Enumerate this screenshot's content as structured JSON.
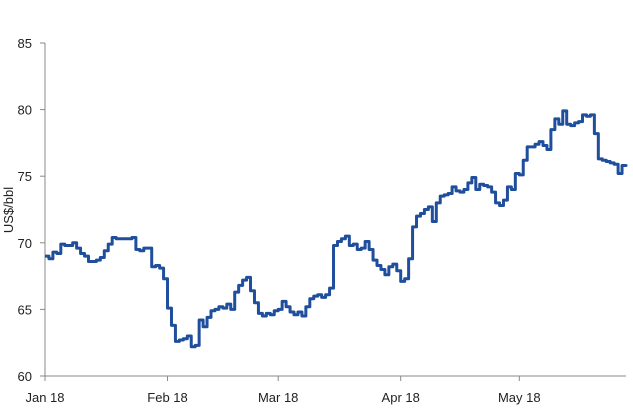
{
  "chart_data": {
    "type": "line",
    "title": "",
    "xlabel": "",
    "ylabel": "US$/bbl",
    "ylim": [
      60,
      85
    ],
    "yticks": [
      "60",
      "65",
      "70",
      "75",
      "80",
      "85"
    ],
    "xticks": [
      "Jan 18",
      "Feb 18",
      "Mar 18",
      "Apr 18",
      "May 18"
    ],
    "grid": false,
    "legend": "none",
    "line_color": "#1f4e9c",
    "series": [
      {
        "name": "",
        "x": [
          "2018-01-01",
          "2018-01-02",
          "2018-01-03",
          "2018-01-04",
          "2018-01-05",
          "2018-01-06",
          "2018-01-07",
          "2018-01-08",
          "2018-01-09",
          "2018-01-10",
          "2018-01-11",
          "2018-01-12",
          "2018-01-13",
          "2018-01-14",
          "2018-01-15",
          "2018-01-16",
          "2018-01-17",
          "2018-01-18",
          "2018-01-19",
          "2018-01-20",
          "2018-01-21",
          "2018-01-22",
          "2018-01-23",
          "2018-01-24",
          "2018-01-25",
          "2018-01-26",
          "2018-01-27",
          "2018-01-28",
          "2018-01-29",
          "2018-01-30",
          "2018-01-31",
          "2018-02-01",
          "2018-02-02",
          "2018-02-03",
          "2018-02-04",
          "2018-02-05",
          "2018-02-06",
          "2018-02-07",
          "2018-02-08",
          "2018-02-09",
          "2018-02-10",
          "2018-02-11",
          "2018-02-12",
          "2018-02-13",
          "2018-02-14",
          "2018-02-15",
          "2018-02-16",
          "2018-02-17",
          "2018-02-18",
          "2018-02-19",
          "2018-02-20",
          "2018-02-21",
          "2018-02-22",
          "2018-02-23",
          "2018-02-24",
          "2018-02-25",
          "2018-02-26",
          "2018-02-27",
          "2018-02-28",
          "2018-03-01",
          "2018-03-02",
          "2018-03-03",
          "2018-03-04",
          "2018-03-05",
          "2018-03-06",
          "2018-03-07",
          "2018-03-08",
          "2018-03-09",
          "2018-03-10",
          "2018-03-11",
          "2018-03-12",
          "2018-03-13",
          "2018-03-14",
          "2018-03-15",
          "2018-03-16",
          "2018-03-17",
          "2018-03-18",
          "2018-03-19",
          "2018-03-20",
          "2018-03-21",
          "2018-03-22",
          "2018-03-23",
          "2018-03-24",
          "2018-03-25",
          "2018-03-26",
          "2018-03-27",
          "2018-03-28",
          "2018-03-29",
          "2018-03-30",
          "2018-03-31",
          "2018-04-01",
          "2018-04-02",
          "2018-04-03",
          "2018-04-04",
          "2018-04-05",
          "2018-04-06",
          "2018-04-07",
          "2018-04-08",
          "2018-04-09",
          "2018-04-10",
          "2018-04-11",
          "2018-04-12",
          "2018-04-13",
          "2018-04-14",
          "2018-04-15",
          "2018-04-16",
          "2018-04-17",
          "2018-04-18",
          "2018-04-19",
          "2018-04-20",
          "2018-04-21",
          "2018-04-22",
          "2018-04-23",
          "2018-04-24",
          "2018-04-25",
          "2018-04-26",
          "2018-04-27",
          "2018-04-28",
          "2018-04-29",
          "2018-04-30",
          "2018-05-01",
          "2018-05-02",
          "2018-05-03",
          "2018-05-04",
          "2018-05-05",
          "2018-05-06",
          "2018-05-07",
          "2018-05-08",
          "2018-05-09",
          "2018-05-10",
          "2018-05-11",
          "2018-05-12",
          "2018-05-13",
          "2018-05-14",
          "2018-05-15",
          "2018-05-16",
          "2018-05-17",
          "2018-05-18",
          "2018-05-19",
          "2018-05-20",
          "2018-05-21",
          "2018-05-22",
          "2018-05-23",
          "2018-05-24",
          "2018-05-25",
          "2018-05-26",
          "2018-05-27",
          "2018-05-28"
        ],
        "y": [
          69.0,
          68.8,
          69.3,
          69.2,
          69.9,
          69.8,
          69.8,
          70.0,
          69.6,
          69.2,
          69.0,
          68.6,
          68.6,
          68.7,
          68.9,
          69.4,
          69.9,
          70.4,
          70.3,
          70.3,
          70.3,
          70.3,
          70.4,
          69.5,
          69.4,
          69.6,
          69.6,
          68.2,
          68.3,
          68.1,
          67.3,
          65.1,
          63.8,
          62.6,
          62.7,
          62.8,
          63.0,
          62.2,
          62.3,
          64.2,
          63.7,
          64.4,
          64.9,
          65.0,
          65.2,
          65.1,
          65.4,
          65.0,
          66.3,
          66.8,
          67.2,
          67.4,
          66.4,
          65.5,
          64.7,
          64.5,
          64.7,
          64.6,
          64.9,
          65.0,
          65.6,
          65.2,
          64.8,
          64.6,
          64.8,
          64.5,
          65.2,
          65.8,
          66.0,
          66.1,
          65.9,
          66.1,
          66.6,
          69.8,
          70.1,
          70.3,
          70.5,
          69.8,
          69.9,
          69.5,
          69.6,
          70.1,
          69.5,
          68.7,
          68.3,
          68.0,
          67.6,
          68.2,
          68.4,
          67.9,
          67.1,
          67.3,
          68.8,
          71.2,
          72.0,
          72.2,
          72.5,
          72.7,
          71.6,
          73.0,
          73.5,
          73.6,
          73.7,
          74.2,
          73.9,
          73.8,
          74.0,
          74.5,
          74.9,
          74.0,
          74.4,
          74.3,
          74.2,
          73.8,
          73.0,
          72.8,
          73.2,
          74.2,
          74.0,
          75.2,
          75.1,
          76.2,
          77.2,
          77.2,
          77.4,
          77.6,
          77.3,
          77.0,
          78.5,
          79.3,
          78.9,
          79.9,
          78.9,
          78.8,
          79.0,
          79.1,
          79.6,
          79.5,
          79.6,
          78.2,
          76.3,
          76.2,
          76.1,
          76.0,
          75.9,
          75.2,
          75.8,
          75.9
        ]
      }
    ]
  }
}
